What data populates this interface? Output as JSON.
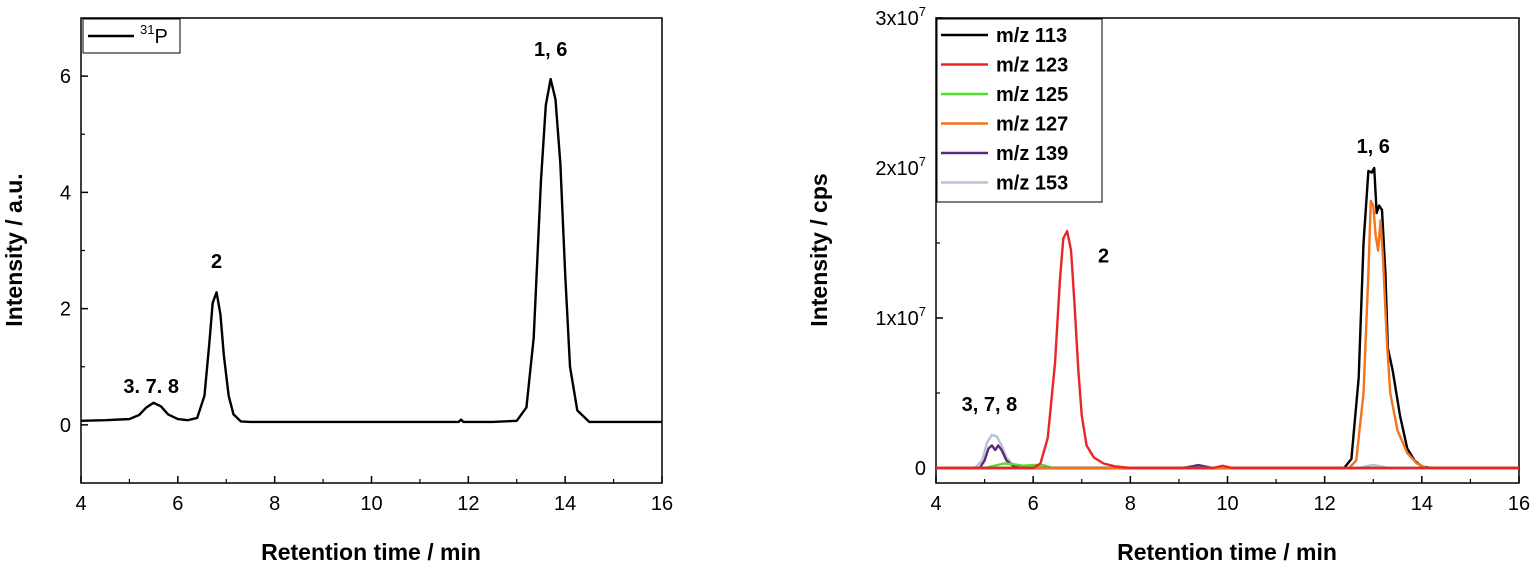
{
  "chart_data": [
    {
      "type": "line",
      "xlabel": "Retention time / min",
      "ylabel": "Intensity / a.u.",
      "xlim": [
        4,
        16
      ],
      "ylim": [
        -1,
        7
      ],
      "xticks": [
        "4",
        "6",
        "8",
        "10",
        "12",
        "14",
        "16"
      ],
      "yticks": [
        "0",
        "2",
        "4",
        "6"
      ],
      "legend": {
        "placement": "top-left",
        "entries": [
          {
            "isotope": "31",
            "element": "P",
            "color": "#000000"
          }
        ]
      },
      "series": [
        {
          "color": "#000000",
          "x": [
            4.0,
            4.5,
            5.0,
            5.2,
            5.35,
            5.5,
            5.65,
            5.8,
            6.0,
            6.2,
            6.4,
            6.55,
            6.65,
            6.72,
            6.8,
            6.88,
            6.95,
            7.05,
            7.15,
            7.3,
            7.5,
            8.0,
            9.0,
            10.0,
            11.0,
            11.8,
            11.85,
            11.9,
            12.0,
            12.5,
            13.0,
            13.2,
            13.35,
            13.5,
            13.6,
            13.7,
            13.8,
            13.9,
            14.0,
            14.1,
            14.25,
            14.5,
            15.0,
            16.0
          ],
          "values": [
            0.07,
            0.08,
            0.1,
            0.17,
            0.3,
            0.38,
            0.32,
            0.18,
            0.1,
            0.08,
            0.12,
            0.5,
            1.4,
            2.1,
            2.28,
            1.9,
            1.2,
            0.5,
            0.18,
            0.06,
            0.05,
            0.05,
            0.05,
            0.05,
            0.05,
            0.05,
            0.09,
            0.05,
            0.05,
            0.05,
            0.07,
            0.3,
            1.5,
            4.2,
            5.5,
            5.95,
            5.6,
            4.5,
            2.6,
            1.0,
            0.25,
            0.05,
            0.05,
            0.05
          ]
        }
      ],
      "annotations": [
        {
          "text": "3. 7. 8",
          "x": 5.45,
          "y": 0.55
        },
        {
          "text": "2",
          "x": 6.8,
          "y": 2.7
        },
        {
          "text": "1, 6",
          "x": 13.7,
          "y": 6.35
        }
      ]
    },
    {
      "type": "line",
      "xlabel": "Retention time / min",
      "ylabel": "Intensity / cps",
      "xlim": [
        4,
        16
      ],
      "ylim": [
        -1000000,
        30000000
      ],
      "xticks": [
        "4",
        "6",
        "8",
        "10",
        "12",
        "14",
        "16"
      ],
      "yticks": [
        {
          "value": 0,
          "base": "0",
          "exp": ""
        },
        {
          "value": 10000000,
          "base": "1x10",
          "exp": "7"
        },
        {
          "value": 20000000,
          "base": "2x10",
          "exp": "7"
        },
        {
          "value": 30000000,
          "base": "3x10",
          "exp": "7"
        }
      ],
      "legend": {
        "placement": "top-left",
        "entries": [
          {
            "label": "m/z 113",
            "color": "#000000"
          },
          {
            "label": "m/z 123",
            "color": "#e8262a"
          },
          {
            "label": "m/z 125",
            "color": "#4fe02c"
          },
          {
            "label": "m/z 127",
            "color": "#f4731f"
          },
          {
            "label": "m/z 139",
            "color": "#5b2a7c"
          },
          {
            "label": "m/z 153",
            "color": "#b6c3d6"
          }
        ]
      },
      "series": [
        {
          "name": "m/z 153",
          "color": "#b6c3d6",
          "x": [
            4.0,
            4.8,
            4.95,
            5.05,
            5.15,
            5.25,
            5.35,
            5.45,
            5.6,
            5.8,
            6.0,
            9.0,
            9.4,
            9.6,
            12.7,
            12.9,
            13.0,
            13.1,
            13.3,
            16.0
          ],
          "values": [
            0,
            0,
            500000,
            1700000,
            2200000,
            2100000,
            1500000,
            700000,
            150000,
            0,
            0,
            0,
            150000,
            0,
            0,
            150000,
            200000,
            150000,
            0,
            0
          ]
        },
        {
          "name": "m/z 139",
          "color": "#5b2a7c",
          "x": [
            4.0,
            4.9,
            5.0,
            5.08,
            5.15,
            5.22,
            5.28,
            5.35,
            5.45,
            5.6,
            5.8,
            9.1,
            9.4,
            9.7,
            16.0
          ],
          "values": [
            0,
            0,
            500000,
            1300000,
            1500000,
            1200000,
            1500000,
            1200000,
            500000,
            100000,
            0,
            0,
            200000,
            0,
            0
          ]
        },
        {
          "name": "m/z 125",
          "color": "#4fe02c",
          "x": [
            4.0,
            5.0,
            5.2,
            5.4,
            5.6,
            5.8,
            6.0,
            6.2,
            6.4,
            16.0
          ],
          "values": [
            0,
            0,
            150000,
            300000,
            250000,
            150000,
            200000,
            200000,
            0,
            0
          ]
        },
        {
          "name": "m/z 113",
          "color": "#000000",
          "x": [
            4.0,
            12.4,
            12.55,
            12.7,
            12.8,
            12.9,
            12.97,
            13.02,
            13.07,
            13.12,
            13.18,
            13.25,
            13.3,
            13.4,
            13.55,
            13.7,
            13.85,
            14.0,
            14.2,
            16.0
          ],
          "values": [
            0,
            0,
            600000,
            6000000,
            15000000,
            19800000,
            19700000,
            20000000,
            17000000,
            17500000,
            17200000,
            13000000,
            8000000,
            6500000,
            3500000,
            1300000,
            500000,
            100000,
            0,
            0
          ]
        },
        {
          "name": "m/z 127",
          "color": "#f4731f",
          "x": [
            4.0,
            12.5,
            12.65,
            12.8,
            12.9,
            12.95,
            13.0,
            13.05,
            13.1,
            13.15,
            13.2,
            13.28,
            13.35,
            13.5,
            13.7,
            13.9,
            14.1,
            16.0
          ],
          "values": [
            0,
            0,
            500000,
            5000000,
            13000000,
            17800000,
            17500000,
            15500000,
            14500000,
            16500000,
            14000000,
            8500000,
            5000000,
            2500000,
            1000000,
            300000,
            0,
            0
          ]
        },
        {
          "name": "m/z 123",
          "color": "#e8262a",
          "x": [
            4.0,
            6.0,
            6.15,
            6.3,
            6.45,
            6.55,
            6.62,
            6.7,
            6.78,
            6.85,
            6.93,
            7.0,
            7.1,
            7.25,
            7.45,
            7.7,
            8.0,
            9.7,
            9.9,
            10.1,
            16.0
          ],
          "values": [
            0,
            0,
            300000,
            2000000,
            7000000,
            12500000,
            15300000,
            15800000,
            14500000,
            11000000,
            6500000,
            3500000,
            1500000,
            700000,
            300000,
            100000,
            0,
            0,
            150000,
            0,
            0
          ]
        }
      ],
      "annotations": [
        {
          "text": "3, 7, 8",
          "x": 5.1,
          "y": 3800000
        },
        {
          "text": "2",
          "x": 7.45,
          "y": 13700000
        },
        {
          "text": "1, 6",
          "x": 13.0,
          "y": 21000000
        }
      ]
    }
  ]
}
